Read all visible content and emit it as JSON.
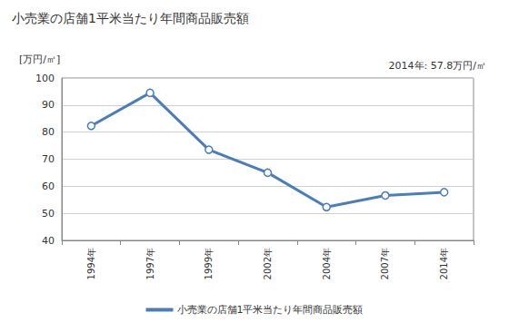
{
  "chart_data": {
    "type": "line",
    "title": "小売業の店舗1平米当たり年間商品販売額",
    "ylabel": "[万円/㎡]",
    "annotation": "2014年: 57.8万円/㎡",
    "categories": [
      "1994年",
      "1997年",
      "1999年",
      "2002年",
      "2004年",
      "2007年",
      "2014年"
    ],
    "series": [
      {
        "name": "小売業の店舗1平米当たり年間商品販売額",
        "color": "#4a7ebb",
        "values": [
          82.3,
          94.5,
          73.5,
          65.0,
          52.3,
          56.6,
          57.8
        ]
      }
    ],
    "ylim": [
      40,
      100
    ],
    "yticks": [
      40,
      50,
      60,
      70,
      80,
      90,
      100
    ],
    "grid": true,
    "legend": "bottom",
    "marker": "circle"
  }
}
